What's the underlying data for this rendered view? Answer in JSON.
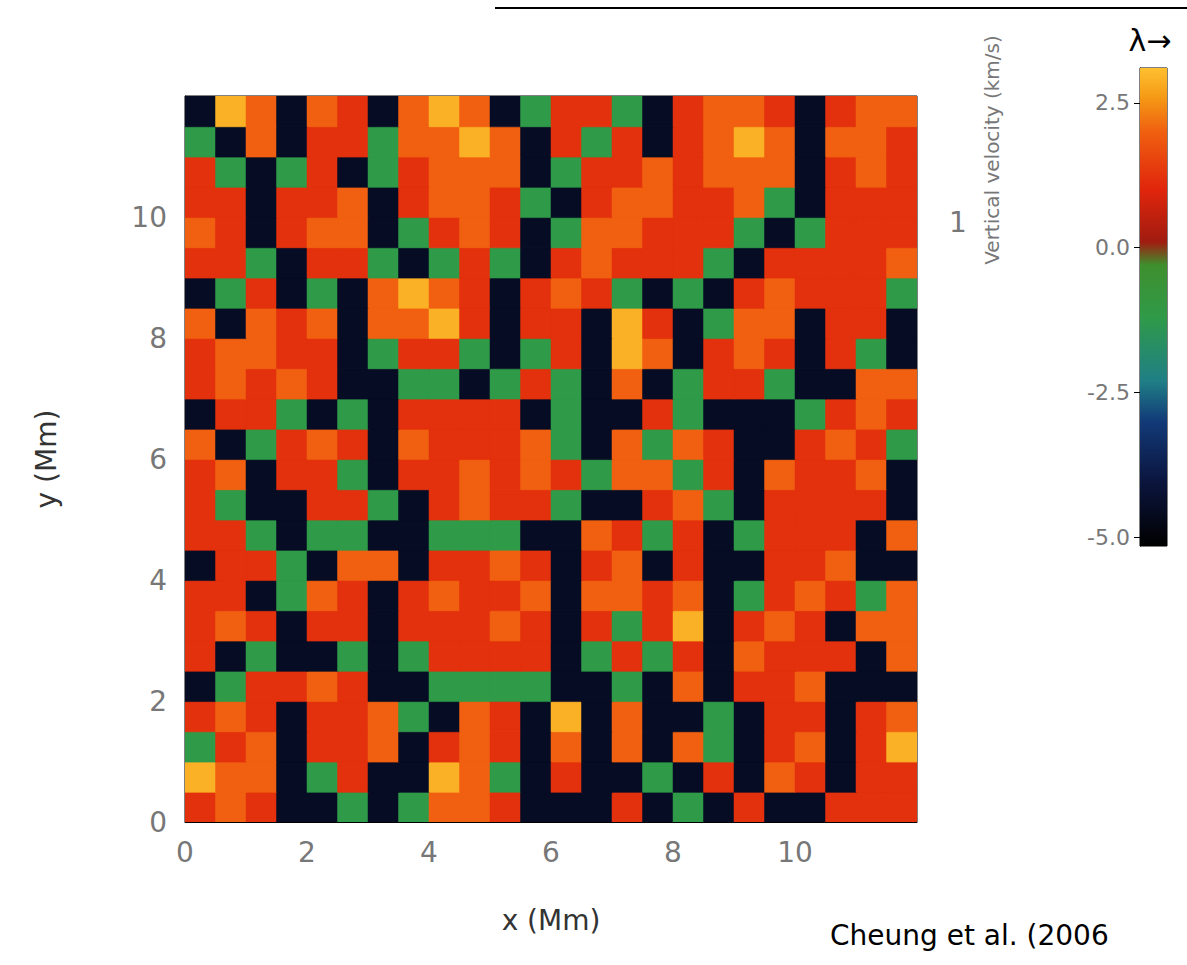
{
  "chart_data": {
    "type": "heatmap",
    "x_label": "x (Mm)",
    "y_label": "y (Mm)",
    "colorbar_label": "Vertical velocity (km/s)",
    "annotations": [
      "λ→",
      "1",
      "Cheung et al. (2006"
    ],
    "xlim": [
      0,
      12
    ],
    "ylim": [
      0,
      12
    ],
    "xticks": [
      0,
      2,
      4,
      6,
      8,
      10
    ],
    "yticks": [
      0,
      2,
      4,
      6,
      8,
      10
    ],
    "grid": false,
    "colorbar_range": [
      -5.15,
      3.1
    ],
    "colorbar_ticks": [
      {
        "value": -5,
        "label": "-5.0"
      },
      -2.5,
      {
        "value": 0,
        "label": "0.0"
      },
      2.5
    ],
    "x": [
      0.25,
      0.75,
      1.25,
      1.75,
      2.25,
      2.75,
      3.25,
      3.75,
      4.25,
      4.75,
      5.25,
      5.75,
      6.25,
      6.75,
      7.25,
      7.75,
      8.25,
      8.75,
      9.25,
      9.75,
      10.25,
      10.75,
      11.25,
      11.75
    ],
    "y": [
      0.25,
      0.75,
      1.25,
      1.75,
      2.25,
      2.75,
      3.25,
      3.75,
      4.25,
      4.75,
      5.25,
      5.75,
      6.25,
      6.75,
      7.25,
      7.75,
      8.25,
      8.75,
      9.25,
      9.75,
      10.25,
      10.75,
      11.25,
      11.75
    ],
    "values": [
      [
        1.2,
        2,
        1.2,
        -4.5,
        -4.5,
        -1.2,
        -4.5,
        -1.2,
        2,
        2,
        1.2,
        -4.5,
        -4.5,
        -4.5,
        1.2,
        -4.5,
        -1.2,
        -4.5,
        1.2,
        -4.5,
        -4.5,
        1.2,
        1.2,
        1.2
      ],
      [
        2.9,
        2,
        2,
        -4.5,
        -1.2,
        1.2,
        -4.5,
        -4.5,
        2.9,
        2,
        -1.2,
        -4.5,
        1.2,
        -4.5,
        -4.5,
        -1.2,
        -4.5,
        1.2,
        -4.5,
        2,
        1.2,
        -4.5,
        1.2,
        1.2
      ],
      [
        -1.2,
        1.2,
        2,
        -4.5,
        1.2,
        1.2,
        2,
        -4.5,
        1.2,
        2,
        1.2,
        -4.5,
        2,
        -4.5,
        2,
        -4.5,
        2,
        -1.2,
        -4.5,
        1.2,
        2,
        -4.5,
        1.2,
        2.9
      ],
      [
        1.2,
        2,
        1.2,
        -4.5,
        1.2,
        1.2,
        2,
        -1.2,
        -4.5,
        2,
        1.2,
        -4.5,
        2.9,
        -4.5,
        2,
        -4.5,
        -4.5,
        -1.2,
        -4.5,
        1.2,
        1.2,
        -4.5,
        1.2,
        2
      ],
      [
        -4.5,
        -1.2,
        1.2,
        1.2,
        2,
        1.2,
        -4.5,
        -4.5,
        -1.2,
        -1.2,
        -1.2,
        -1.2,
        -4.5,
        -4.5,
        -1.2,
        -4.5,
        2,
        -4.5,
        1.2,
        1.2,
        2,
        -4.5,
        -4.5,
        -4.5
      ],
      [
        1.2,
        -4.5,
        -1.2,
        -4.5,
        -4.5,
        -1.2,
        -4.5,
        -1.2,
        1.2,
        1.2,
        1.2,
        1.2,
        -4.5,
        -1.2,
        1.2,
        -1.2,
        1.2,
        -4.5,
        2,
        1.2,
        1.2,
        1.2,
        -4.5,
        2
      ],
      [
        1.2,
        2,
        1.2,
        -4.5,
        1.2,
        1.2,
        -4.5,
        1.2,
        1.2,
        1.2,
        2,
        1.2,
        -4.5,
        1.2,
        -1.2,
        1.2,
        2.9,
        -4.5,
        1.2,
        2,
        1.2,
        -4.5,
        2,
        2
      ],
      [
        1.2,
        1.2,
        -4.5,
        -1.2,
        2,
        1.2,
        -4.5,
        1.2,
        2,
        1.2,
        1.2,
        2,
        -4.5,
        2,
        2,
        1.2,
        2,
        -4.5,
        -1.2,
        1.2,
        2,
        1.2,
        -1.2,
        2
      ],
      [
        -4.5,
        1.2,
        1.2,
        -1.2,
        -4.5,
        2,
        2,
        -4.5,
        1.2,
        1.2,
        2,
        1.2,
        -4.5,
        1.2,
        2,
        -4.5,
        1.2,
        -4.5,
        -4.5,
        1.2,
        1.2,
        2,
        -4.5,
        -4.5
      ],
      [
        1.2,
        1.2,
        -1.2,
        -4.5,
        -1.2,
        -1.2,
        -4.5,
        -4.5,
        -1.2,
        -1.2,
        -1.2,
        -4.5,
        -4.5,
        2,
        1.2,
        -1.2,
        1.2,
        -4.5,
        -1.2,
        1.2,
        1.2,
        1.2,
        -4.5,
        2
      ],
      [
        1.2,
        -1.2,
        -4.5,
        -4.5,
        1.2,
        1.2,
        -1.2,
        -4.5,
        1.2,
        2,
        1.2,
        1.2,
        -1.2,
        -4.5,
        -4.5,
        1.2,
        2,
        -1.2,
        -4.5,
        1.2,
        1.2,
        1.2,
        1.2,
        -4.5
      ],
      [
        1.2,
        2,
        -4.5,
        1.2,
        1.2,
        -1.2,
        -4.5,
        1.2,
        1.2,
        2,
        1.2,
        2,
        1.2,
        -1.2,
        2,
        2,
        -1.2,
        1.2,
        -4.5,
        2,
        1.2,
        1.2,
        2,
        -4.5
      ],
      [
        2,
        -4.5,
        -1.2,
        1.2,
        2,
        1.2,
        -4.5,
        2,
        1.2,
        1.2,
        1.2,
        2,
        -1.2,
        -4.5,
        2,
        -1.2,
        2,
        1.2,
        -4.5,
        -4.5,
        1.2,
        2,
        1.2,
        -1.2
      ],
      [
        -4.5,
        1.2,
        1.2,
        -1.2,
        -4.5,
        -1.2,
        -4.5,
        1.2,
        1.2,
        1.2,
        1.2,
        -4.5,
        -1.2,
        -4.5,
        -4.5,
        1.2,
        -1.2,
        -4.5,
        -4.5,
        -4.5,
        -1.2,
        1.2,
        2,
        1.2
      ],
      [
        1.2,
        2,
        1.2,
        2,
        1.2,
        -4.5,
        -4.5,
        -1.2,
        -1.2,
        -4.5,
        -1.2,
        1.2,
        -1.2,
        -4.5,
        2,
        -4.5,
        -1.2,
        1.2,
        1.2,
        -1.2,
        -4.5,
        -4.5,
        2,
        2
      ],
      [
        1.2,
        2,
        2,
        1.2,
        1.2,
        -4.5,
        -1.2,
        1.2,
        1.2,
        -1.2,
        -4.5,
        -1.2,
        1.2,
        -4.5,
        2.9,
        2,
        -4.5,
        1.2,
        2,
        1.2,
        -4.5,
        1.2,
        -1.2,
        -4.5
      ],
      [
        2,
        -4.5,
        2,
        1.2,
        2,
        -4.5,
        2,
        2,
        2.9,
        1.2,
        -4.5,
        1.2,
        1.2,
        -4.5,
        2.9,
        1.2,
        -4.5,
        -1.2,
        2,
        2,
        -4.5,
        1.2,
        1.2,
        -4.5
      ],
      [
        -4.5,
        -1.2,
        1.2,
        -4.5,
        -1.2,
        -4.5,
        2,
        2.9,
        2,
        1.2,
        -4.5,
        1.2,
        2,
        1.2,
        -1.2,
        -4.5,
        -1.2,
        -4.5,
        1.2,
        2,
        1.2,
        1.2,
        1.2,
        -1.2
      ],
      [
        1.2,
        1.2,
        -1.2,
        -4.5,
        1.2,
        1.2,
        -1.2,
        -4.5,
        -1.2,
        1.2,
        -1.2,
        -4.5,
        1.2,
        2,
        1.2,
        1.2,
        1.2,
        -1.2,
        -4.5,
        1.2,
        1.2,
        1.2,
        1.2,
        2
      ],
      [
        2,
        1.2,
        -4.5,
        1.2,
        2,
        2,
        -4.5,
        -1.2,
        1.2,
        2,
        1.2,
        -4.5,
        -1.2,
        2,
        2,
        1.2,
        1.2,
        1.2,
        -1.2,
        -4.5,
        -1.2,
        1.2,
        1.2,
        1.2
      ],
      [
        1.2,
        1.2,
        -4.5,
        1.2,
        1.2,
        2,
        -4.5,
        1.2,
        2,
        2,
        1.2,
        -1.2,
        -4.5,
        1.2,
        2,
        2,
        1.2,
        1.2,
        2,
        -1.2,
        -4.5,
        1.2,
        1.2,
        1.2
      ],
      [
        1.2,
        -1.2,
        -4.5,
        -1.2,
        1.2,
        -4.5,
        -1.2,
        1.2,
        2,
        2,
        2,
        -4.5,
        -1.2,
        1.2,
        1.2,
        2,
        1.2,
        2,
        2,
        2,
        -4.5,
        1.2,
        2,
        1.2
      ],
      [
        -1.2,
        -4.5,
        2,
        -4.5,
        1.2,
        1.2,
        -1.2,
        2,
        2,
        2.9,
        2,
        -4.5,
        1.2,
        -1.2,
        1.2,
        -4.5,
        1.2,
        2,
        2.9,
        2,
        -4.5,
        2,
        2,
        1.2
      ],
      [
        -4.5,
        2.9,
        2,
        -4.5,
        2,
        1.2,
        -4.5,
        2,
        2.9,
        2,
        -4.5,
        -1.2,
        1.2,
        1.2,
        -1.2,
        -4.5,
        1.2,
        2,
        2,
        1.2,
        -4.5,
        1.2,
        2,
        2
      ]
    ]
  }
}
